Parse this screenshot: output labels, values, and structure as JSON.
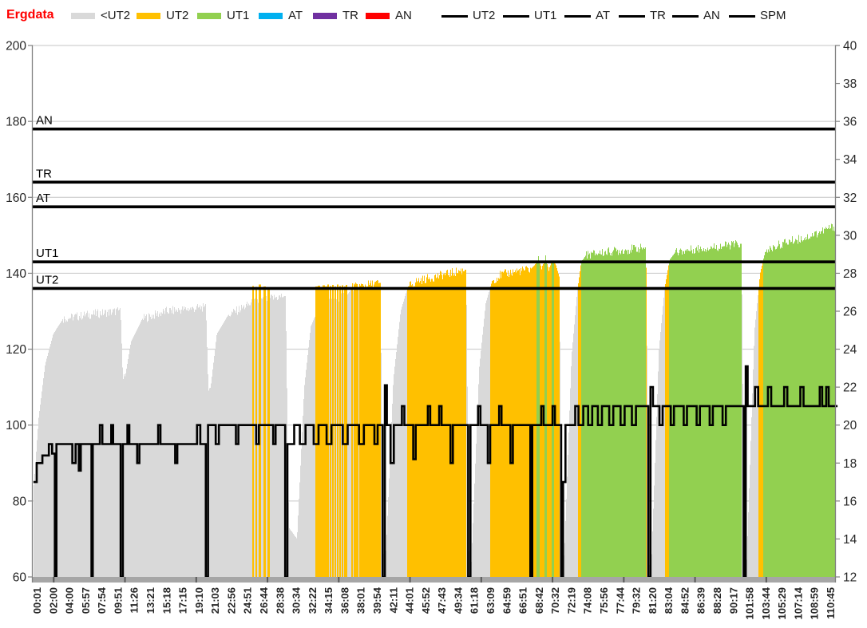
{
  "brand": {
    "label": "Ergdata",
    "color": "#ff0000"
  },
  "legend": {
    "zones": [
      {
        "label": "<UT2",
        "color": "#d9d9d9"
      },
      {
        "label": "UT2",
        "color": "#ffc000"
      },
      {
        "label": "UT1",
        "color": "#92d050"
      },
      {
        "label": "AT",
        "color": "#00b0f0"
      },
      {
        "label": "TR",
        "color": "#7030a0"
      },
      {
        "label": "AN",
        "color": "#ff0000"
      }
    ],
    "lines": [
      {
        "label": "UT2"
      },
      {
        "label": "UT1"
      },
      {
        "label": "AT"
      },
      {
        "label": "TR"
      },
      {
        "label": "AN"
      },
      {
        "label": "SPM"
      }
    ]
  },
  "chart_data": {
    "type": "bar",
    "title": "Ergdata heart-rate zone bars with SPM line",
    "categories": [
      "00:01",
      "02:00",
      "04:00",
      "05:57",
      "07:54",
      "09:51",
      "11:26",
      "13:21",
      "15:18",
      "17:15",
      "19:10",
      "21:03",
      "22:56",
      "24:51",
      "26:44",
      "28:38",
      "30:34",
      "32:22",
      "34:15",
      "36:08",
      "38:01",
      "39:54",
      "42:11",
      "44:01",
      "45:52",
      "47:43",
      "49:34",
      "61:18",
      "63:09",
      "64:59",
      "66:51",
      "68:42",
      "70:32",
      "72:19",
      "74:08",
      "75:56",
      "77:44",
      "79:32",
      "81:20",
      "83:04",
      "84:52",
      "86:39",
      "88:28",
      "90:17",
      "101:58",
      "103:44",
      "105:29",
      "107:14",
      "108:59",
      "110:45"
    ],
    "ylim_left": [
      60,
      200
    ],
    "left_ticks": [
      200,
      180,
      160,
      140,
      120,
      100,
      80,
      60
    ],
    "ylim_right": [
      12,
      40
    ],
    "right_ticks": [
      40,
      38,
      36,
      34,
      32,
      30,
      28,
      26,
      24,
      22,
      20,
      18,
      16,
      14,
      12
    ],
    "grid_values": [
      200,
      180,
      160,
      140,
      120,
      100,
      80
    ],
    "thresholds": [
      {
        "name": "AN",
        "value": 178
      },
      {
        "name": "TR",
        "value": 164
      },
      {
        "name": "AT",
        "value": 157.5
      },
      {
        "name": "UT1",
        "value": 143
      },
      {
        "name": "UT2",
        "value": 136
      }
    ],
    "zone_colors": {
      "lt_ut2": "#d9d9d9",
      "ut2": "#ffc000",
      "ut1": "#92d050",
      "at": "#00b0f0",
      "tr": "#7030a0",
      "an": "#ff0000"
    },
    "spm_line_color": "#000000",
    "hr_envelope": [
      [
        -0.2,
        84
      ],
      [
        0.1,
        102
      ],
      [
        0.5,
        116
      ],
      [
        1.0,
        124
      ],
      [
        1.6,
        128
      ],
      [
        3.0,
        129
      ],
      [
        5.0,
        130
      ],
      [
        5.15,
        131
      ],
      [
        5.3,
        112
      ],
      [
        5.45,
        113
      ],
      [
        5.8,
        122
      ],
      [
        6.5,
        128
      ],
      [
        8.0,
        130
      ],
      [
        10.3,
        131
      ],
      [
        10.42,
        132
      ],
      [
        10.58,
        109
      ],
      [
        10.72,
        110
      ],
      [
        11.1,
        124
      ],
      [
        11.8,
        129
      ],
      [
        13.2,
        132
      ],
      [
        14.0,
        133
      ],
      [
        15.2,
        134
      ],
      [
        15.35,
        134
      ],
      [
        15.55,
        73
      ],
      [
        16.05,
        70
      ],
      [
        16.5,
        110
      ],
      [
        16.9,
        126
      ],
      [
        17.4,
        131
      ],
      [
        18.2,
        133
      ],
      [
        19.2,
        134.5
      ],
      [
        19.45,
        136.3
      ],
      [
        20.2,
        136.8
      ],
      [
        21.2,
        137.5
      ],
      [
        21.38,
        66
      ],
      [
        21.55,
        67
      ],
      [
        22.0,
        112
      ],
      [
        22.45,
        130
      ],
      [
        22.9,
        136.5
      ],
      [
        23.5,
        138
      ],
      [
        24.5,
        139
      ],
      [
        25.5,
        140
      ],
      [
        26.5,
        141
      ],
      [
        26.68,
        62
      ],
      [
        26.82,
        64
      ],
      [
        27.3,
        115
      ],
      [
        27.7,
        132
      ],
      [
        28.1,
        138
      ],
      [
        28.6,
        139.5
      ],
      [
        29.5,
        140.5
      ],
      [
        30.45,
        141
      ],
      [
        30.7,
        142
      ],
      [
        30.95,
        143.6
      ],
      [
        31.15,
        141.5
      ],
      [
        31.4,
        143.8
      ],
      [
        31.6,
        141
      ],
      [
        31.85,
        143.7
      ],
      [
        32.05,
        142
      ],
      [
        32.25,
        139
      ],
      [
        32.42,
        64
      ],
      [
        32.56,
        66
      ],
      [
        33.0,
        118
      ],
      [
        33.35,
        135
      ],
      [
        33.6,
        143
      ],
      [
        33.9,
        144.8
      ],
      [
        34.6,
        145.3
      ],
      [
        36.0,
        146
      ],
      [
        37.6,
        146.8
      ],
      [
        37.8,
        63
      ],
      [
        37.95,
        65
      ],
      [
        38.4,
        120
      ],
      [
        38.75,
        136
      ],
      [
        39.05,
        143.5
      ],
      [
        39.4,
        145.5
      ],
      [
        40.5,
        146.3
      ],
      [
        42.0,
        147
      ],
      [
        43.5,
        147.8
      ],
      [
        43.68,
        62
      ],
      [
        43.82,
        64
      ],
      [
        44.3,
        125
      ],
      [
        44.65,
        140
      ],
      [
        44.95,
        145.5
      ],
      [
        45.5,
        147
      ],
      [
        46.5,
        148.5
      ],
      [
        47.5,
        149.5
      ],
      [
        48.3,
        150.8
      ],
      [
        49.0,
        152
      ],
      [
        49.45,
        152.6
      ]
    ],
    "hr_spikes": [
      [
        13.35,
        136.6
      ],
      [
        13.55,
        136.4
      ],
      [
        13.75,
        137.0
      ],
      [
        14.05,
        136.5
      ],
      [
        14.3,
        136.3
      ],
      [
        17.25,
        136.5
      ],
      [
        17.4,
        136.7
      ],
      [
        17.55,
        136.4
      ],
      [
        17.7,
        136.8
      ],
      [
        17.85,
        136.5
      ],
      [
        17.95,
        137.0
      ],
      [
        18.1,
        136.6
      ],
      [
        18.25,
        136.9
      ],
      [
        18.4,
        136.5
      ],
      [
        18.55,
        137.0
      ],
      [
        18.7,
        136.6
      ],
      [
        18.85,
        136.8
      ],
      [
        19.0,
        136.5
      ],
      [
        19.1,
        136.9
      ]
    ],
    "spm_steps": [
      [
        -0.2,
        0.0,
        17
      ],
      [
        0.0,
        0.35,
        18
      ],
      [
        0.35,
        0.75,
        18.4
      ],
      [
        0.75,
        0.95,
        19
      ],
      [
        0.95,
        1.12,
        18.5
      ],
      [
        1.12,
        1.22,
        0
      ],
      [
        1.22,
        2.2,
        19
      ],
      [
        2.2,
        2.4,
        18
      ],
      [
        2.4,
        2.6,
        19
      ],
      [
        2.6,
        2.72,
        17.6
      ],
      [
        2.72,
        3.38,
        19
      ],
      [
        3.38,
        3.46,
        0
      ],
      [
        3.46,
        3.9,
        19
      ],
      [
        3.9,
        4.05,
        20
      ],
      [
        4.05,
        4.6,
        19
      ],
      [
        4.6,
        4.72,
        20
      ],
      [
        4.72,
        5.18,
        19
      ],
      [
        5.18,
        5.32,
        0
      ],
      [
        5.32,
        5.6,
        19
      ],
      [
        5.6,
        5.72,
        20
      ],
      [
        5.72,
        6.2,
        19
      ],
      [
        6.2,
        6.34,
        18
      ],
      [
        6.34,
        7.5,
        19
      ],
      [
        7.5,
        7.64,
        20
      ],
      [
        7.64,
        8.55,
        19
      ],
      [
        8.55,
        8.68,
        18
      ],
      [
        8.68,
        9.9,
        19
      ],
      [
        9.9,
        10.1,
        20
      ],
      [
        10.1,
        10.44,
        19
      ],
      [
        10.44,
        10.58,
        0
      ],
      [
        10.58,
        11.05,
        20
      ],
      [
        11.05,
        11.25,
        19
      ],
      [
        11.25,
        12.3,
        20
      ],
      [
        12.3,
        12.45,
        19
      ],
      [
        12.45,
        13.55,
        20
      ],
      [
        13.55,
        13.72,
        19
      ],
      [
        13.72,
        14.6,
        20
      ],
      [
        14.6,
        14.75,
        19
      ],
      [
        14.75,
        15.34,
        20
      ],
      [
        15.34,
        15.48,
        0
      ],
      [
        15.48,
        15.9,
        19
      ],
      [
        15.9,
        16.25,
        20
      ],
      [
        16.25,
        16.6,
        19
      ],
      [
        16.6,
        17.1,
        20
      ],
      [
        17.1,
        17.4,
        19
      ],
      [
        17.4,
        17.9,
        20
      ],
      [
        17.9,
        18.2,
        19
      ],
      [
        18.2,
        18.9,
        20
      ],
      [
        18.9,
        19.2,
        19
      ],
      [
        19.2,
        19.9,
        20
      ],
      [
        19.9,
        20.2,
        19
      ],
      [
        20.2,
        20.85,
        20
      ],
      [
        20.85,
        21.05,
        19
      ],
      [
        21.05,
        21.36,
        20
      ],
      [
        21.36,
        21.5,
        0
      ],
      [
        21.5,
        21.62,
        22.1
      ],
      [
        21.62,
        21.85,
        20
      ],
      [
        21.85,
        22.05,
        18
      ],
      [
        22.05,
        22.55,
        20
      ],
      [
        22.55,
        22.7,
        21
      ],
      [
        22.7,
        23.25,
        20
      ],
      [
        23.25,
        23.4,
        18.2
      ],
      [
        23.4,
        24.15,
        20
      ],
      [
        24.15,
        24.3,
        21
      ],
      [
        24.3,
        24.85,
        20
      ],
      [
        24.85,
        25.0,
        21
      ],
      [
        25.0,
        25.55,
        20
      ],
      [
        25.55,
        25.7,
        18
      ],
      [
        25.7,
        26.64,
        20
      ],
      [
        26.64,
        26.78,
        0
      ],
      [
        26.78,
        27.25,
        20
      ],
      [
        27.25,
        27.4,
        21
      ],
      [
        27.4,
        27.85,
        20
      ],
      [
        27.85,
        28.0,
        18
      ],
      [
        28.0,
        28.55,
        20
      ],
      [
        28.55,
        28.7,
        21
      ],
      [
        28.7,
        29.25,
        20
      ],
      [
        29.25,
        29.4,
        18
      ],
      [
        29.4,
        30.48,
        20
      ],
      [
        30.48,
        30.6,
        0
      ],
      [
        30.6,
        31.15,
        20
      ],
      [
        31.15,
        31.3,
        21
      ],
      [
        31.3,
        31.85,
        20
      ],
      [
        31.85,
        32.0,
        21
      ],
      [
        32.0,
        32.38,
        20
      ],
      [
        32.38,
        32.5,
        0
      ],
      [
        32.5,
        32.65,
        17
      ],
      [
        32.65,
        33.25,
        20
      ],
      [
        33.25,
        33.45,
        21
      ],
      [
        33.45,
        33.75,
        20
      ],
      [
        33.75,
        34.05,
        21
      ],
      [
        34.05,
        34.3,
        20
      ],
      [
        34.3,
        34.65,
        21
      ],
      [
        34.65,
        34.9,
        20
      ],
      [
        34.9,
        35.35,
        21
      ],
      [
        35.35,
        35.6,
        20
      ],
      [
        35.6,
        36.05,
        21
      ],
      [
        36.05,
        36.3,
        20
      ],
      [
        36.3,
        36.75,
        21
      ],
      [
        36.75,
        37.0,
        20
      ],
      [
        37.0,
        37.76,
        21
      ],
      [
        37.76,
        37.9,
        0
      ],
      [
        37.9,
        38.05,
        22
      ],
      [
        38.05,
        38.45,
        21
      ],
      [
        38.45,
        38.65,
        20
      ],
      [
        38.65,
        39.15,
        21
      ],
      [
        39.15,
        39.35,
        20
      ],
      [
        39.35,
        39.95,
        21
      ],
      [
        39.95,
        40.15,
        20
      ],
      [
        40.15,
        40.75,
        21
      ],
      [
        40.75,
        40.95,
        20
      ],
      [
        40.95,
        41.55,
        21
      ],
      [
        41.55,
        41.75,
        20
      ],
      [
        41.75,
        42.35,
        21
      ],
      [
        42.35,
        42.55,
        20
      ],
      [
        42.55,
        43.65,
        21
      ],
      [
        43.65,
        43.78,
        0
      ],
      [
        43.78,
        43.9,
        23.1
      ],
      [
        43.9,
        44.35,
        21
      ],
      [
        44.35,
        44.55,
        22
      ],
      [
        44.55,
        45.15,
        21
      ],
      [
        45.15,
        45.35,
        22
      ],
      [
        45.35,
        46.15,
        21
      ],
      [
        46.15,
        46.35,
        22
      ],
      [
        46.35,
        47.15,
        21
      ],
      [
        47.15,
        47.35,
        22
      ],
      [
        47.35,
        48.35,
        21
      ],
      [
        48.35,
        48.5,
        22
      ],
      [
        48.5,
        48.75,
        21
      ],
      [
        48.75,
        48.9,
        22
      ],
      [
        48.9,
        49.45,
        21
      ]
    ],
    "x_axis_major_ticks": [
      1,
      5.4,
      9.8,
      14.2,
      18.6,
      23,
      27.4,
      31.8,
      36.2,
      40.6,
      45
    ]
  }
}
